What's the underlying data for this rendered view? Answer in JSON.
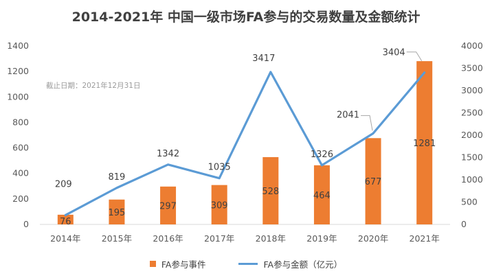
{
  "title": "2014-2021年 中国一级市场FA参与的交易数量及金额统计",
  "note": "截止日期：2021年12月31日",
  "colors": {
    "bar": "#ED7D31",
    "line": "#5B9BD5",
    "axis_text": "#595959",
    "grid": "#d9d9d9"
  },
  "legend": {
    "bar_label": "FA参与事件",
    "line_label": "FA参与金额（亿元）"
  },
  "chart_data": {
    "type": "bar",
    "categories": [
      "2014年",
      "2015年",
      "2016年",
      "2017年",
      "2018年",
      "2019年",
      "2020年",
      "2021年"
    ],
    "series": [
      {
        "name": "FA参与事件",
        "type": "bar",
        "axis": "left",
        "values": [
          76,
          195,
          297,
          309,
          528,
          464,
          677,
          1281
        ]
      },
      {
        "name": "FA参与金额（亿元）",
        "type": "line",
        "axis": "right",
        "values": [
          209,
          819,
          1342,
          1035,
          3417,
          1326,
          2041,
          3404
        ]
      }
    ],
    "left_axis": {
      "range": [
        0,
        1400
      ],
      "ticks": [
        "0",
        "200",
        "400",
        "600",
        "800",
        "1000",
        "1200",
        "1400"
      ]
    },
    "right_axis": {
      "range": [
        0,
        4000
      ],
      "ticks": [
        "0",
        "500",
        "1000",
        "1500",
        "2000",
        "2500",
        "3000",
        "3500",
        "4000"
      ]
    },
    "grid": false,
    "legend_position": "bottom"
  }
}
